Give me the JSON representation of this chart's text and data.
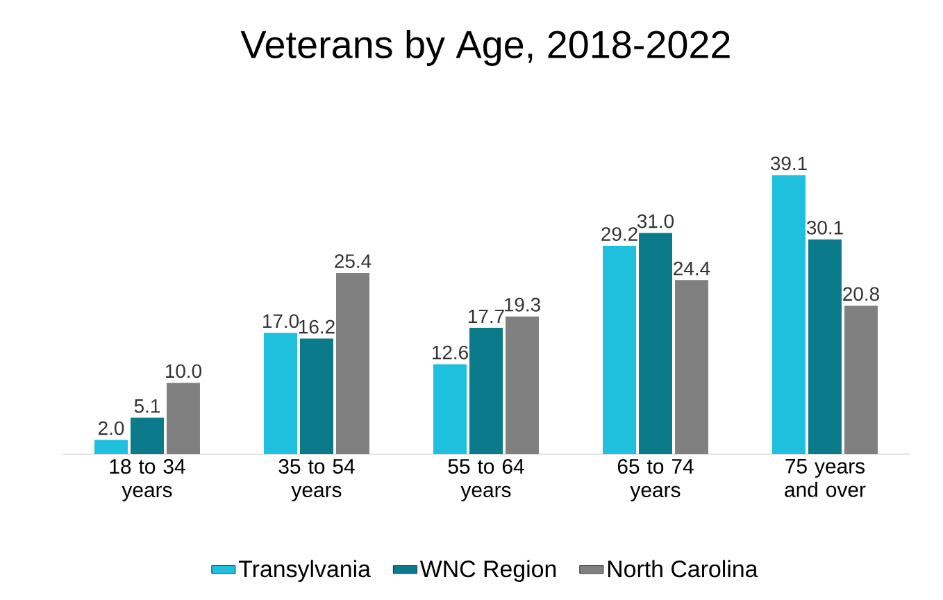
{
  "chart_data": {
    "type": "bar",
    "title": "Veterans by Age, 2018-2022",
    "categories": [
      "18 to 34 years",
      "35 to 54 years",
      "55 to 64 years",
      "65 to 74 years",
      "75 years and over"
    ],
    "series": [
      {
        "name": "Transylvania",
        "color": "#1fc0dd",
        "values": [
          2.0,
          17.0,
          12.6,
          29.2,
          39.1
        ],
        "value_labels": [
          "2.0",
          "17.0",
          "12.6",
          "29.2",
          "39.1"
        ]
      },
      {
        "name": "WNC Region",
        "color": "#0b7b8b",
        "values": [
          5.1,
          16.2,
          17.7,
          31.0,
          30.1
        ],
        "value_labels": [
          "5.1",
          "16.2",
          "17.7",
          "31.0",
          "30.1"
        ]
      },
      {
        "name": "North Carolina",
        "color": "#808080",
        "values": [
          10.0,
          25.4,
          19.3,
          24.4,
          20.8
        ],
        "value_labels": [
          "10.0",
          "25.4",
          "19.3",
          "24.4",
          "20.8"
        ]
      }
    ],
    "legend": "bottom"
  }
}
